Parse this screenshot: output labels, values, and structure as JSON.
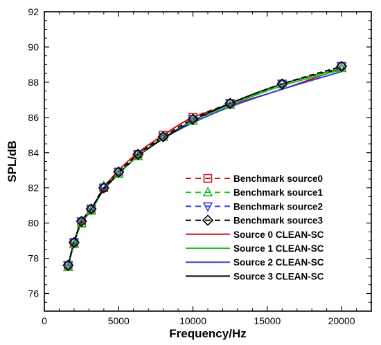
{
  "chart_data": {
    "type": "line",
    "title": "",
    "xlabel": "Frequency/Hz",
    "ylabel": "SPL/dB",
    "xlim": [
      0,
      22000
    ],
    "ylim": [
      75,
      92
    ],
    "xticks": [
      0,
      5000,
      10000,
      15000,
      20000
    ],
    "yticks": [
      76,
      78,
      80,
      82,
      84,
      86,
      88,
      90,
      92
    ],
    "grid": false,
    "legend_position": "bottom-right",
    "x": [
      1600,
      2000,
      2500,
      3150,
      4000,
      5000,
      6300,
      8000,
      10000,
      12500,
      16000,
      20000
    ],
    "series": [
      {
        "name": "Benchmark source0",
        "style": "dashed",
        "marker": "square",
        "color": "#d0121b",
        "values": [
          77.6,
          78.9,
          80.0,
          80.8,
          82.0,
          82.9,
          83.9,
          85.0,
          86.0,
          86.8,
          87.9,
          88.9
        ]
      },
      {
        "name": "Benchmark source1",
        "style": "dashed",
        "marker": "triangle-up",
        "color": "#1bbf1b",
        "values": [
          77.5,
          78.8,
          80.0,
          80.7,
          82.1,
          82.8,
          83.8,
          84.9,
          85.8,
          86.7,
          87.9,
          88.8
        ]
      },
      {
        "name": "Benchmark source2",
        "style": "dashed",
        "marker": "triangle-down",
        "color": "#3a3ad8",
        "values": [
          77.6,
          78.9,
          80.1,
          80.8,
          82.0,
          82.9,
          83.9,
          84.9,
          85.9,
          86.8,
          87.9,
          88.9
        ]
      },
      {
        "name": "Benchmark source3",
        "style": "dashed",
        "marker": "diamond",
        "color": "#000000",
        "values": [
          77.6,
          78.9,
          80.1,
          80.8,
          82.0,
          82.9,
          83.9,
          84.9,
          85.9,
          86.8,
          87.9,
          88.9
        ]
      },
      {
        "name": "Source 0 CLEAN-SC",
        "style": "solid",
        "marker": "none",
        "color": "#d0121b",
        "values": [
          77.6,
          78.9,
          80.1,
          80.8,
          82.0,
          83.0,
          84.0,
          85.0,
          86.0,
          86.7,
          87.6,
          88.8
        ]
      },
      {
        "name": "Source 1 CLEAN-SC",
        "style": "solid",
        "marker": "none",
        "color": "#1bbf1b",
        "values": [
          77.5,
          78.8,
          80.0,
          80.7,
          81.9,
          82.8,
          83.8,
          84.8,
          85.8,
          86.7,
          87.8,
          88.7
        ]
      },
      {
        "name": "Source 2 CLEAN-SC",
        "style": "solid",
        "marker": "none",
        "color": "#3a3ad8",
        "values": [
          77.6,
          78.9,
          80.1,
          80.8,
          81.9,
          82.8,
          83.8,
          84.8,
          85.7,
          86.6,
          87.6,
          88.6
        ]
      },
      {
        "name": "Source 3 CLEAN-SC",
        "style": "solid",
        "marker": "none",
        "color": "#000000",
        "values": [
          77.6,
          78.9,
          80.1,
          80.8,
          81.9,
          82.8,
          83.8,
          84.8,
          85.8,
          86.8,
          87.9,
          88.8
        ]
      }
    ]
  }
}
